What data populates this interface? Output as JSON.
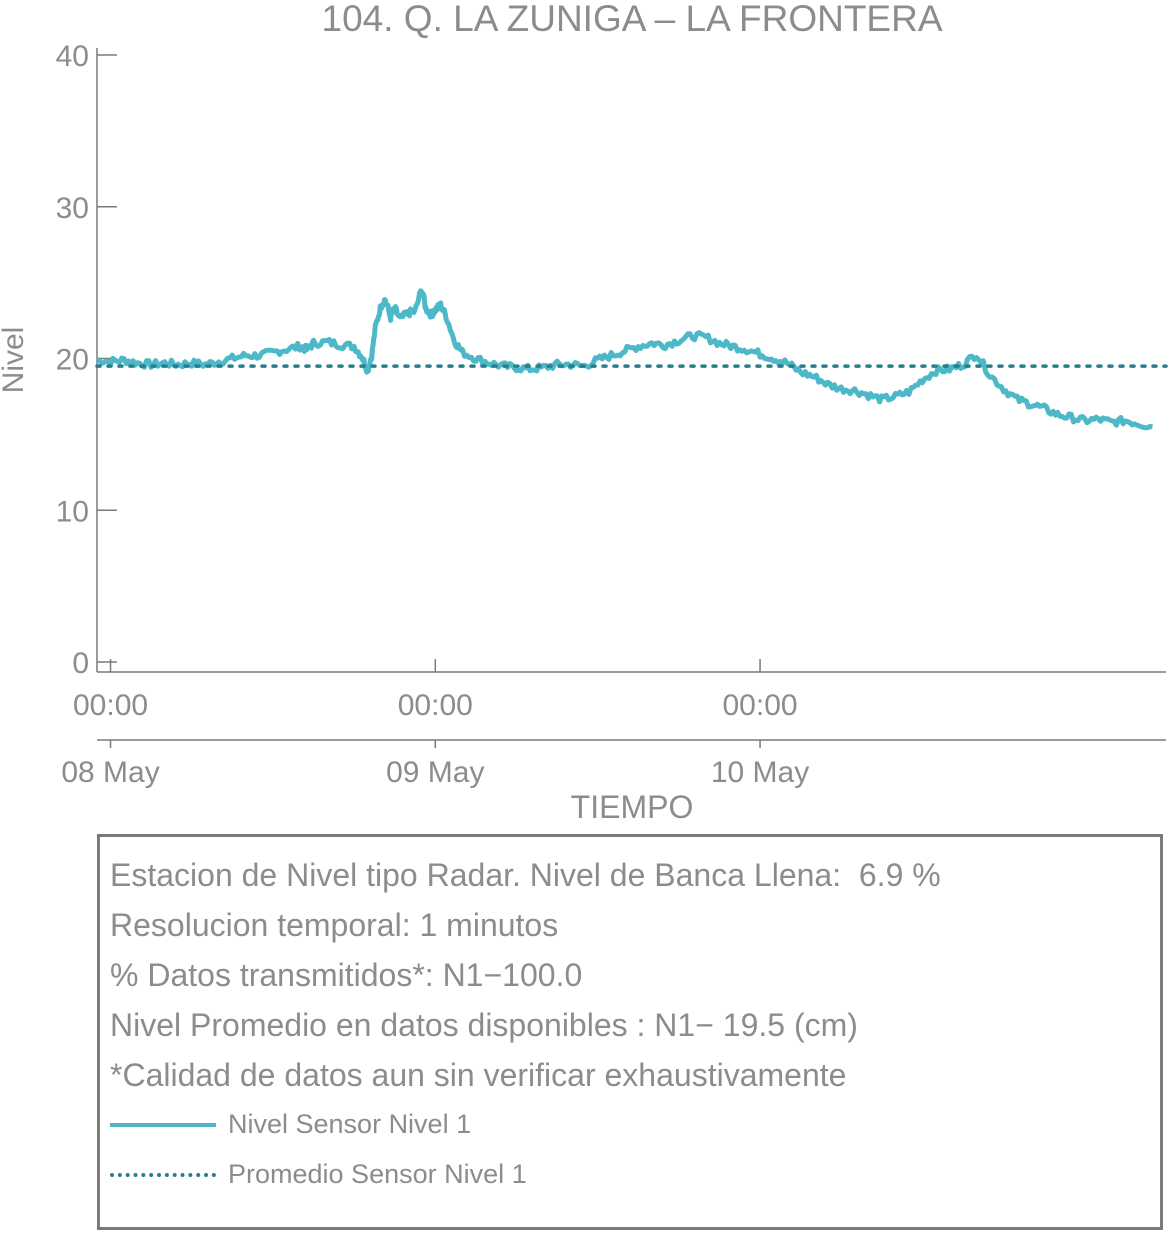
{
  "chart_data": {
    "type": "line",
    "title": "104. Q. LA ZUNIGA – LA FRONTERA",
    "xlabel": "TIEMPO",
    "ylabel": "Nivel",
    "ylim": [
      0,
      40
    ],
    "xlim_hours": [
      -1,
      71
    ],
    "yticks": [
      {
        "value": 0,
        "label": "0"
      },
      {
        "value": 10,
        "label": "10"
      },
      {
        "value": 20,
        "label": "20"
      },
      {
        "value": 30,
        "label": "30"
      },
      {
        "value": 40,
        "label": "40"
      }
    ],
    "xticks": [
      {
        "hour": 0,
        "time": "00:00",
        "date": "08 May"
      },
      {
        "hour": 24,
        "time": "00:00",
        "date": "09 May"
      },
      {
        "hour": 48,
        "time": "00:00",
        "date": "10 May"
      }
    ],
    "grid": false,
    "series": [
      {
        "name": "Nivel Sensor Nivel 1",
        "color": "#4db8c8",
        "style": "solid",
        "points": [
          [
            -1,
            19.9
          ],
          [
            0,
            19.8
          ],
          [
            1,
            19.9
          ],
          [
            2,
            19.7
          ],
          [
            3,
            19.6
          ],
          [
            4,
            19.7
          ],
          [
            5,
            19.6
          ],
          [
            6,
            19.7
          ],
          [
            7,
            19.6
          ],
          [
            8,
            19.8
          ],
          [
            9,
            20.0
          ],
          [
            10,
            20.2
          ],
          [
            11,
            20.2
          ],
          [
            12,
            20.4
          ],
          [
            13,
            20.6
          ],
          [
            14,
            20.8
          ],
          [
            14.5,
            20.6
          ],
          [
            15,
            21.0
          ],
          [
            16,
            21.1
          ],
          [
            17,
            20.9
          ],
          [
            18,
            20.8
          ],
          [
            18.6,
            20.1
          ],
          [
            19,
            19.2
          ],
          [
            19.3,
            20.2
          ],
          [
            19.6,
            22.2
          ],
          [
            20,
            23.5
          ],
          [
            20.3,
            23.9
          ],
          [
            20.7,
            22.7
          ],
          [
            21,
            23.3
          ],
          [
            21.4,
            22.6
          ],
          [
            22,
            23.0
          ],
          [
            22.5,
            23.1
          ],
          [
            23,
            24.6
          ],
          [
            23.3,
            23.3
          ],
          [
            23.7,
            22.9
          ],
          [
            24,
            23.2
          ],
          [
            24.4,
            23.5
          ],
          [
            24.8,
            22.8
          ],
          [
            25.4,
            21.2
          ],
          [
            26,
            20.4
          ],
          [
            27,
            20.0
          ],
          [
            28,
            19.7
          ],
          [
            29,
            19.5
          ],
          [
            30,
            19.4
          ],
          [
            31,
            19.3
          ],
          [
            32,
            19.4
          ],
          [
            33,
            19.6
          ],
          [
            34,
            19.6
          ],
          [
            35,
            19.5
          ],
          [
            36,
            19.9
          ],
          [
            37,
            20.2
          ],
          [
            38,
            20.5
          ],
          [
            39,
            20.8
          ],
          [
            40,
            21.0
          ],
          [
            41,
            20.9
          ],
          [
            42,
            21.2
          ],
          [
            43,
            21.5
          ],
          [
            44,
            21.4
          ],
          [
            45,
            21.0
          ],
          [
            46,
            20.8
          ],
          [
            47,
            20.6
          ],
          [
            48,
            20.3
          ],
          [
            49,
            20.0
          ],
          [
            50,
            19.7
          ],
          [
            51,
            19.1
          ],
          [
            52,
            18.8
          ],
          [
            53,
            18.3
          ],
          [
            54,
            18.0
          ],
          [
            55,
            17.9
          ],
          [
            56,
            17.6
          ],
          [
            57,
            17.3
          ],
          [
            58,
            17.5
          ],
          [
            59,
            17.8
          ],
          [
            60,
            18.6
          ],
          [
            61,
            19.2
          ],
          [
            62,
            19.3
          ],
          [
            63,
            19.6
          ],
          [
            64,
            20.3
          ],
          [
            65,
            18.9
          ],
          [
            66,
            18.0
          ],
          [
            67,
            17.3
          ],
          [
            68,
            17.0
          ],
          [
            69,
            16.7
          ],
          [
            70,
            16.3
          ],
          [
            71,
            16.1
          ],
          [
            72,
            15.9
          ],
          [
            73,
            16.0
          ],
          [
            74,
            15.8
          ],
          [
            75,
            15.9
          ],
          [
            76,
            15.7
          ],
          [
            77,
            15.5
          ]
        ]
      },
      {
        "name": "Promedio Sensor Nivel 1",
        "color": "#2a7d8c",
        "style": "dotted",
        "value": 19.5
      }
    ]
  },
  "info": {
    "lines": [
      "Estacion de Nivel tipo Radar. Nivel de Banca Llena:  6.9 %",
      "Resolucion temporal: 1 minutos",
      "% Datos transmitidos*: N1−100.0",
      "Nivel Promedio en datos disponibles : N1− 19.5 (cm)",
      "*Calidad de datos aun sin verificar exhaustivamente"
    ],
    "legend": [
      {
        "label": "Nivel Sensor Nivel 1",
        "color": "#4db8c8",
        "style": "solid"
      },
      {
        "label": "Promedio Sensor Nivel 1",
        "color": "#2a7d8c",
        "style": "dotted"
      }
    ]
  }
}
